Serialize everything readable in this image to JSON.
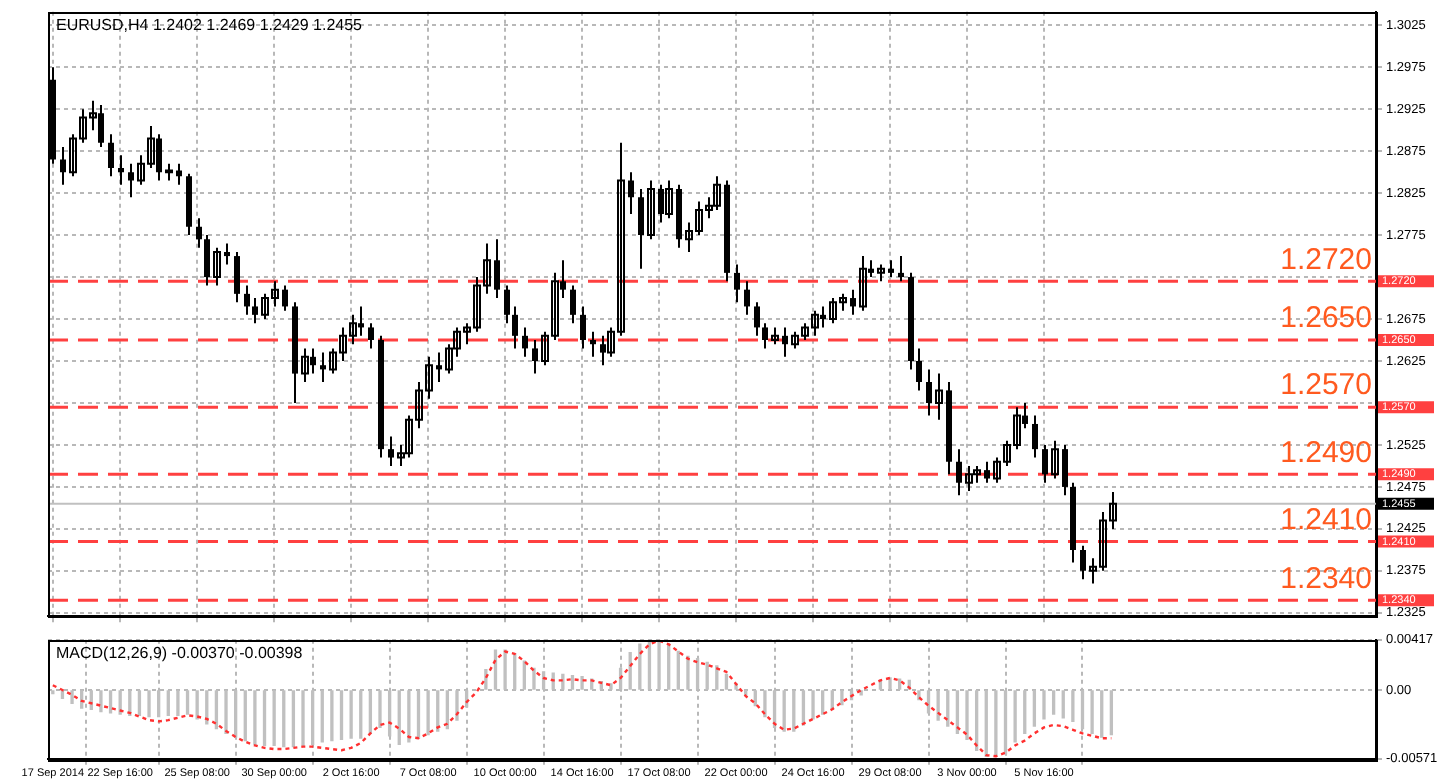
{
  "chart_data": [
    {
      "type": "candlestick",
      "title": "EURUSD,H4 1.2402 1.2469 1.2429 1.2455",
      "categories": [
        null,
        null,
        null,
        null,
        null,
        null,
        null,
        null,
        null,
        null,
        null,
        null,
        null,
        null,
        null,
        null,
        null,
        null,
        null,
        null,
        null,
        null,
        null,
        null,
        null,
        null,
        null,
        null,
        null,
        null,
        null,
        null,
        null,
        null,
        null,
        null,
        null,
        null,
        null,
        null,
        null,
        null,
        null,
        null,
        null,
        null,
        null,
        null,
        null,
        null,
        null,
        null,
        null,
        null,
        null,
        null,
        null,
        null,
        null,
        null,
        null,
        null,
        null,
        null,
        null,
        null,
        null,
        null,
        null,
        null,
        null,
        null,
        null,
        null,
        null,
        null,
        null,
        null,
        null,
        null,
        null,
        null,
        null,
        null,
        null,
        null,
        null,
        null,
        null,
        null,
        null,
        null,
        null,
        null,
        null,
        null,
        null,
        null,
        null,
        null,
        null,
        null,
        null,
        null,
        null,
        null,
        null,
        null,
        null,
        null,
        null,
        null,
        null,
        null,
        null,
        null,
        null,
        null,
        null,
        null,
        null,
        null,
        null,
        null,
        null,
        null,
        null,
        null,
        null,
        null,
        null,
        null,
        null,
        null,
        null,
        null,
        null,
        null
      ],
      "ohlc": [
        [
          1.296,
          1.2975,
          1.286,
          1.2865
        ],
        [
          1.2865,
          1.288,
          1.2835,
          1.285
        ],
        [
          1.285,
          1.2895,
          1.2845,
          1.289
        ],
        [
          1.289,
          1.2925,
          1.2885,
          1.2915
        ],
        [
          1.2915,
          1.2935,
          1.29,
          1.292
        ],
        [
          1.292,
          1.293,
          1.288,
          1.2885
        ],
        [
          1.2885,
          1.2895,
          1.2845,
          1.2855
        ],
        [
          1.2855,
          1.287,
          1.2835,
          1.285
        ],
        [
          1.285,
          1.286,
          1.282,
          1.284
        ],
        [
          1.284,
          1.287,
          1.2835,
          1.286
        ],
        [
          1.286,
          1.2905,
          1.2855,
          1.289
        ],
        [
          1.289,
          1.2895,
          1.284,
          1.285
        ],
        [
          1.285,
          1.286,
          1.284,
          1.2852
        ],
        [
          1.2852,
          1.286,
          1.2835,
          1.2845
        ],
        [
          1.2845,
          1.2848,
          1.2775,
          1.2785
        ],
        [
          1.2785,
          1.2795,
          1.276,
          1.277
        ],
        [
          1.277,
          1.2775,
          1.2715,
          1.2725
        ],
        [
          1.2725,
          1.276,
          1.2715,
          1.2755
        ],
        [
          1.2755,
          1.2765,
          1.274,
          1.275
        ],
        [
          1.275,
          1.2755,
          1.2695,
          1.2705
        ],
        [
          1.2705,
          1.2715,
          1.268,
          1.269
        ],
        [
          1.269,
          1.27,
          1.267,
          1.268
        ],
        [
          1.268,
          1.2705,
          1.2675,
          1.27
        ],
        [
          1.27,
          1.272,
          1.269,
          1.271
        ],
        [
          1.271,
          1.2715,
          1.2685,
          1.269
        ],
        [
          1.269,
          1.2695,
          1.2575,
          1.261
        ],
        [
          1.261,
          1.264,
          1.26,
          1.263
        ],
        [
          1.263,
          1.264,
          1.261,
          1.262
        ],
        [
          1.262,
          1.2635,
          1.26,
          1.2615
        ],
        [
          1.2615,
          1.264,
          1.261,
          1.2635
        ],
        [
          1.2635,
          1.2665,
          1.2625,
          1.2655
        ],
        [
          1.2655,
          1.268,
          1.2645,
          1.267
        ],
        [
          1.267,
          1.269,
          1.2655,
          1.2665
        ],
        [
          1.2665,
          1.267,
          1.264,
          1.265
        ],
        [
          1.265,
          1.2655,
          1.251,
          1.252
        ],
        [
          1.252,
          1.2535,
          1.25,
          1.251
        ],
        [
          1.251,
          1.2525,
          1.25,
          1.2515
        ],
        [
          1.2515,
          1.256,
          1.251,
          1.2555
        ],
        [
          1.2555,
          1.26,
          1.2545,
          1.259
        ],
        [
          1.259,
          1.263,
          1.258,
          1.262
        ],
        [
          1.262,
          1.2635,
          1.26,
          1.2615
        ],
        [
          1.2615,
          1.2645,
          1.261,
          1.264
        ],
        [
          1.264,
          1.2665,
          1.263,
          1.266
        ],
        [
          1.266,
          1.267,
          1.2645,
          1.2665
        ],
        [
          1.2665,
          1.2725,
          1.266,
          1.2715
        ],
        [
          1.2715,
          1.2765,
          1.2705,
          1.2745
        ],
        [
          1.2745,
          1.277,
          1.27,
          1.271
        ],
        [
          1.271,
          1.2715,
          1.267,
          1.268
        ],
        [
          1.268,
          1.269,
          1.264,
          1.2655
        ],
        [
          1.2655,
          1.2665,
          1.263,
          1.264
        ],
        [
          1.264,
          1.265,
          1.261,
          1.2625
        ],
        [
          1.2625,
          1.266,
          1.262,
          1.2655
        ],
        [
          1.2655,
          1.273,
          1.265,
          1.272
        ],
        [
          1.272,
          1.2745,
          1.27,
          1.271
        ],
        [
          1.271,
          1.2715,
          1.267,
          1.268
        ],
        [
          1.268,
          1.269,
          1.264,
          1.265
        ],
        [
          1.265,
          1.266,
          1.263,
          1.2645
        ],
        [
          1.2645,
          1.2655,
          1.262,
          1.2635
        ],
        [
          1.2635,
          1.2665,
          1.263,
          1.266
        ],
        [
          1.266,
          1.2885,
          1.2655,
          1.284
        ],
        [
          1.284,
          1.285,
          1.28,
          1.282
        ],
        [
          1.282,
          1.283,
          1.2735,
          1.2775
        ],
        [
          1.2775,
          1.284,
          1.277,
          1.283
        ],
        [
          1.283,
          1.2835,
          1.279,
          1.28
        ],
        [
          1.28,
          1.284,
          1.2795,
          1.283
        ],
        [
          1.283,
          1.2835,
          1.276,
          1.277
        ],
        [
          1.277,
          1.279,
          1.2755,
          1.278
        ],
        [
          1.278,
          1.2815,
          1.2775,
          1.2805
        ],
        [
          1.2805,
          1.282,
          1.2795,
          1.281
        ],
        [
          1.281,
          1.2845,
          1.2805,
          1.2835
        ],
        [
          1.2835,
          1.284,
          1.272,
          1.273
        ],
        [
          1.273,
          1.274,
          1.2695,
          1.271
        ],
        [
          1.271,
          1.272,
          1.268,
          1.269
        ],
        [
          1.269,
          1.2695,
          1.2655,
          1.2665
        ],
        [
          1.2665,
          1.267,
          1.264,
          1.265
        ],
        [
          1.265,
          1.2665,
          1.2645,
          1.2655
        ],
        [
          1.2655,
          1.2665,
          1.263,
          1.2645
        ],
        [
          1.2645,
          1.266,
          1.264,
          1.2655
        ],
        [
          1.2655,
          1.267,
          1.265,
          1.2665
        ],
        [
          1.2665,
          1.2685,
          1.2655,
          1.268
        ],
        [
          1.268,
          1.269,
          1.2665,
          1.2675
        ],
        [
          1.2675,
          1.27,
          1.267,
          1.2695
        ],
        [
          1.2695,
          1.2705,
          1.2685,
          1.27
        ],
        [
          1.27,
          1.271,
          1.268,
          1.269
        ],
        [
          1.269,
          1.275,
          1.2685,
          1.2735
        ],
        [
          1.2735,
          1.2745,
          1.2725,
          1.273
        ],
        [
          1.273,
          1.274,
          1.272,
          1.2735
        ],
        [
          1.2735,
          1.2745,
          1.2725,
          1.273
        ],
        [
          1.273,
          1.275,
          1.272,
          1.2725
        ],
        [
          1.2725,
          1.273,
          1.2615,
          1.2625
        ],
        [
          1.2625,
          1.264,
          1.259,
          1.26
        ],
        [
          1.26,
          1.2615,
          1.256,
          1.2575
        ],
        [
          1.2575,
          1.261,
          1.2555,
          1.259
        ],
        [
          1.259,
          1.26,
          1.249,
          1.2505
        ],
        [
          1.2505,
          1.252,
          1.2465,
          1.248
        ],
        [
          1.248,
          1.25,
          1.247,
          1.249
        ],
        [
          1.249,
          1.25,
          1.248,
          1.2495
        ],
        [
          1.2495,
          1.2505,
          1.248,
          1.2485
        ],
        [
          1.2485,
          1.251,
          1.248,
          1.2505
        ],
        [
          1.2505,
          1.253,
          1.25,
          1.2525
        ],
        [
          1.2525,
          1.257,
          1.252,
          1.256
        ],
        [
          1.256,
          1.2575,
          1.2545,
          1.255
        ],
        [
          1.255,
          1.256,
          1.251,
          1.252
        ],
        [
          1.252,
          1.2525,
          1.248,
          1.249
        ],
        [
          1.249,
          1.253,
          1.2485,
          1.252
        ],
        [
          1.252,
          1.2525,
          1.2465,
          1.2475
        ],
        [
          1.2475,
          1.248,
          1.2385,
          1.24
        ],
        [
          1.24,
          1.2405,
          1.2365,
          1.2375
        ],
        [
          1.2375,
          1.239,
          1.236,
          1.238
        ],
        [
          1.238,
          1.2445,
          1.2375,
          1.2435
        ],
        [
          1.2435,
          1.2469,
          1.2425,
          1.2455
        ],
        null,
        null,
        null,
        null,
        null,
        null,
        null,
        null,
        null,
        null,
        null,
        null,
        null,
        null,
        null,
        null,
        null,
        null,
        null,
        null,
        null,
        null,
        null,
        null,
        null,
        null,
        null
      ],
      "color": "#000000",
      "ylim": [
        1.2321,
        1.3041
      ],
      "yticks": [
        1.3025,
        1.2975,
        1.2925,
        1.2875,
        1.2825,
        1.2775,
        {
          "value": 1.2725,
          "label": null
        },
        1.2675,
        1.2625,
        {
          "value": 1.2575,
          "label": null
        },
        1.2525,
        1.2475,
        1.2425,
        1.2375,
        1.2325
      ],
      "ref_lines": [
        {
          "axis": "y",
          "value": 1.272,
          "label": "1.2720",
          "color": "#ff4040",
          "line_style": "dashed"
        },
        {
          "axis": "y",
          "value": 1.265,
          "label": "1.2650",
          "color": "#ff4040",
          "line_style": "dashed"
        },
        {
          "axis": "y",
          "value": 1.257,
          "label": "1.2570",
          "color": "#ff4040",
          "line_style": "dashed"
        },
        {
          "axis": "y",
          "value": 1.249,
          "label": "1.2490",
          "color": "#ff4040",
          "line_style": "dashed"
        },
        {
          "axis": "y",
          "value": 1.241,
          "label": "1.2410",
          "color": "#ff4040",
          "line_style": "dashed"
        },
        {
          "axis": "y",
          "value": 1.234,
          "label": "1.2340",
          "color": "#ff4040",
          "line_style": "dashed"
        },
        {
          "axis": "y",
          "value": 1.2455,
          "label": "1.2455",
          "color": "#c0c0c0",
          "line_style": "solid"
        }
      ],
      "grid": true,
      "legend": false,
      "tick_labels": "y"
    },
    {
      "type": "bar",
      "title": "MACD(12,26,9) -0.00370 -0.00398",
      "categories": [
        "17 Sep 2014",
        null,
        null,
        null,
        null,
        null,
        null,
        "22 Sep 16:00",
        null,
        null,
        null,
        null,
        null,
        null,
        null,
        "25 Sep 08:00",
        null,
        null,
        null,
        null,
        null,
        null,
        null,
        "30 Sep 00:00",
        null,
        null,
        null,
        null,
        null,
        null,
        null,
        "2 Oct 16:00",
        null,
        null,
        null,
        null,
        null,
        null,
        null,
        "7 Oct 08:00",
        null,
        null,
        null,
        null,
        null,
        null,
        null,
        "10 Oct 00:00",
        null,
        null,
        null,
        null,
        null,
        null,
        null,
        "14 Oct 16:00",
        null,
        null,
        null,
        null,
        null,
        null,
        null,
        "17 Oct 08:00",
        null,
        null,
        null,
        null,
        null,
        null,
        null,
        "22 Oct 00:00",
        null,
        null,
        null,
        null,
        null,
        null,
        null,
        "24 Oct 16:00",
        null,
        null,
        null,
        null,
        null,
        null,
        null,
        "29 Oct 08:00",
        null,
        null,
        null,
        null,
        null,
        null,
        null,
        "3 Nov 00:00",
        null,
        null,
        null,
        null,
        null,
        null,
        null,
        "5 Nov 16:00",
        null,
        null,
        null,
        null,
        null,
        null,
        null,
        null,
        null,
        null,
        null,
        null,
        null,
        null,
        null,
        null,
        null,
        null,
        null,
        null,
        null,
        null,
        null,
        null,
        null,
        null,
        null,
        null,
        null,
        null,
        null,
        null,
        null,
        null
      ],
      "series": [
        {
          "type": "bar",
          "color": "#c0c0c0",
          "values": [
            -0.0003,
            -0.0007,
            -0.0011,
            -0.0015,
            -0.0016,
            -0.0018,
            -0.0019,
            -0.002,
            -0.0021,
            -0.0021,
            -0.0022,
            -0.0022,
            -0.0021,
            -0.0021,
            -0.002,
            -0.0024,
            -0.0028,
            -0.0032,
            -0.0036,
            -0.0039,
            -0.0042,
            -0.0045,
            -0.0046,
            -0.0046,
            -0.0047,
            -0.0047,
            -0.0046,
            -0.0045,
            -0.0043,
            -0.0042,
            -0.0041,
            -0.004,
            -0.004,
            -0.0036,
            -0.0031,
            -0.0038,
            -0.0045,
            -0.0043,
            -0.004,
            -0.0037,
            -0.0034,
            -0.0032,
            -0.0025,
            -0.0014,
            null,
            0.0017,
            0.0033,
            0.0033,
            0.003,
            0.0024,
            0.0018,
            0.0015,
            0.0014,
            0.0013,
            0.0012,
            0.0011,
            0.0009,
            0.0007,
            0.0005,
            0.0018,
            0.0031,
            0.0038,
            0.0041,
            0.0041,
            0.0038,
            0.0032,
            0.0028,
            0.0026,
            0.0023,
            0.002,
            0.0013,
            0.0005,
            -0.0004,
            -0.0013,
            -0.0022,
            -0.0031,
            -0.0034,
            -0.0034,
            -0.0029,
            -0.0024,
            -0.002,
            -0.0016,
            -0.0012,
            -0.0008,
            -0.0004,
            null,
            0.0008,
            0.001,
            0.0009,
            0.0008,
            -0.0008,
            -0.0019,
            -0.0025,
            -0.003,
            -0.0036,
            -0.0041,
            -0.005,
            -0.0055,
            -0.0055,
            -0.0053,
            -0.0043,
            -0.0036,
            -0.003,
            -0.0024,
            -0.002,
            -0.0023,
            -0.0026,
            -0.0032,
            -0.0036,
            -0.0039,
            -0.0037,
            null,
            null,
            null,
            null,
            null,
            null,
            null,
            null,
            null,
            null,
            null,
            null,
            null,
            null,
            null,
            null,
            null,
            null,
            null,
            null,
            null,
            null,
            null,
            null,
            null,
            null,
            null
          ]
        },
        {
          "type": "line",
          "color": "#ff3030",
          "line_style": "dotted",
          "marker": "none",
          "values": [
            0.0004,
            0,
            -0.0004,
            -0.0009,
            -0.0011,
            -0.0013,
            -0.0015,
            -0.0017,
            -0.0019,
            -0.0022,
            -0.0025,
            -0.0026,
            -0.0025,
            -0.0023,
            -0.0021,
            -0.0022,
            -0.0024,
            -0.0028,
            -0.0034,
            -0.0039,
            -0.0043,
            -0.0046,
            -0.0048,
            -0.0049,
            -0.0049,
            -0.0048,
            -0.0047,
            -0.0047,
            -0.0048,
            -0.0049,
            -0.005,
            -0.0048,
            -0.0044,
            -0.0036,
            -0.0029,
            -0.0027,
            -0.0032,
            -0.0039,
            -0.004,
            -0.0036,
            -0.0031,
            -0.0028,
            -0.002,
            -0.001,
            -0.0002,
            0.001,
            0.0025,
            0.0032,
            0.003,
            0.0024,
            0.0016,
            0.001,
            0.0008,
            0.0008,
            0.0009,
            0.0008,
            0.0008,
            0.0006,
            0.0004,
            0.001,
            0.002,
            0.003,
            0.0038,
            0.0041,
            0.0038,
            0.0032,
            0.0026,
            0.0023,
            0.0021,
            0.0018,
            0.0015,
            0.0005,
            -0.0005,
            -0.0011,
            -0.002,
            -0.0028,
            -0.0033,
            -0.0032,
            -0.0028,
            -0.0024,
            -0.002,
            -0.0016,
            -0.001,
            -0.0005,
            0,
            0.0004,
            0.0008,
            0.001,
            0.0008,
            0.0002,
            -0.0006,
            -0.0013,
            -0.0019,
            -0.0025,
            -0.0031,
            -0.0037,
            -0.0046,
            -0.0054,
            -0.0055,
            -0.0052,
            -0.0046,
            -0.0042,
            -0.0036,
            -0.0031,
            -0.0029,
            -0.003,
            -0.0033,
            -0.0036,
            -0.0038,
            -0.004,
            -0.004,
            null,
            null,
            null,
            null,
            null,
            null,
            null,
            null,
            null,
            null,
            null,
            null,
            null,
            null,
            null,
            null,
            null,
            null,
            null,
            null,
            null,
            null,
            null,
            null,
            null,
            null,
            null
          ]
        }
      ],
      "ylim": [
        -0.00571,
        0.00417
      ],
      "yticks": [
        0.00417,
        {
          "value": 0,
          "label": "0.00"
        },
        -0.00571
      ],
      "grid": true,
      "legend": false
    }
  ]
}
